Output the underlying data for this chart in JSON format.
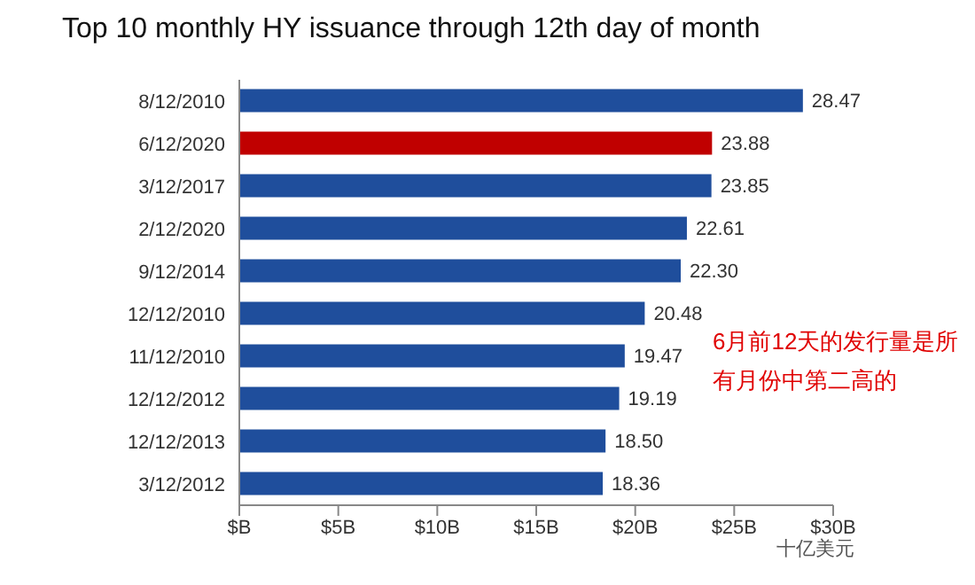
{
  "chart_data": {
    "type": "bar",
    "orientation": "horizontal",
    "title": "Top 10 monthly HY issuance through 12th day of month",
    "categories": [
      "8/12/2010",
      "6/12/2020",
      "3/12/2017",
      "2/12/2020",
      "9/12/2014",
      "12/12/2010",
      "11/12/2010",
      "12/12/2012",
      "12/12/2013",
      "3/12/2012"
    ],
    "values": [
      28.47,
      23.88,
      23.85,
      22.61,
      22.3,
      20.48,
      19.47,
      19.19,
      18.5,
      18.36
    ],
    "value_labels": [
      "28.47",
      "23.88",
      "23.85",
      "22.61",
      "22.30",
      "20.48",
      "19.47",
      "19.19",
      "18.50",
      "18.36"
    ],
    "colors": [
      "#1f4e9c",
      "#c00000",
      "#1f4e9c",
      "#1f4e9c",
      "#1f4e9c",
      "#1f4e9c",
      "#1f4e9c",
      "#1f4e9c",
      "#1f4e9c",
      "#1f4e9c"
    ],
    "xlim": [
      0,
      30
    ],
    "xticks": [
      {
        "value": 0,
        "label": "$B"
      },
      {
        "value": 5,
        "label": "$5B"
      },
      {
        "value": 10,
        "label": "$10B"
      },
      {
        "value": 15,
        "label": "$15B"
      },
      {
        "value": 20,
        "label": "$20B"
      },
      {
        "value": 25,
        "label": "$25B"
      },
      {
        "value": 30,
        "label": "$30B"
      }
    ],
    "annotations": [
      "6月前12天的发行量是所有月份中第二高的",
      "十亿美元"
    ]
  }
}
